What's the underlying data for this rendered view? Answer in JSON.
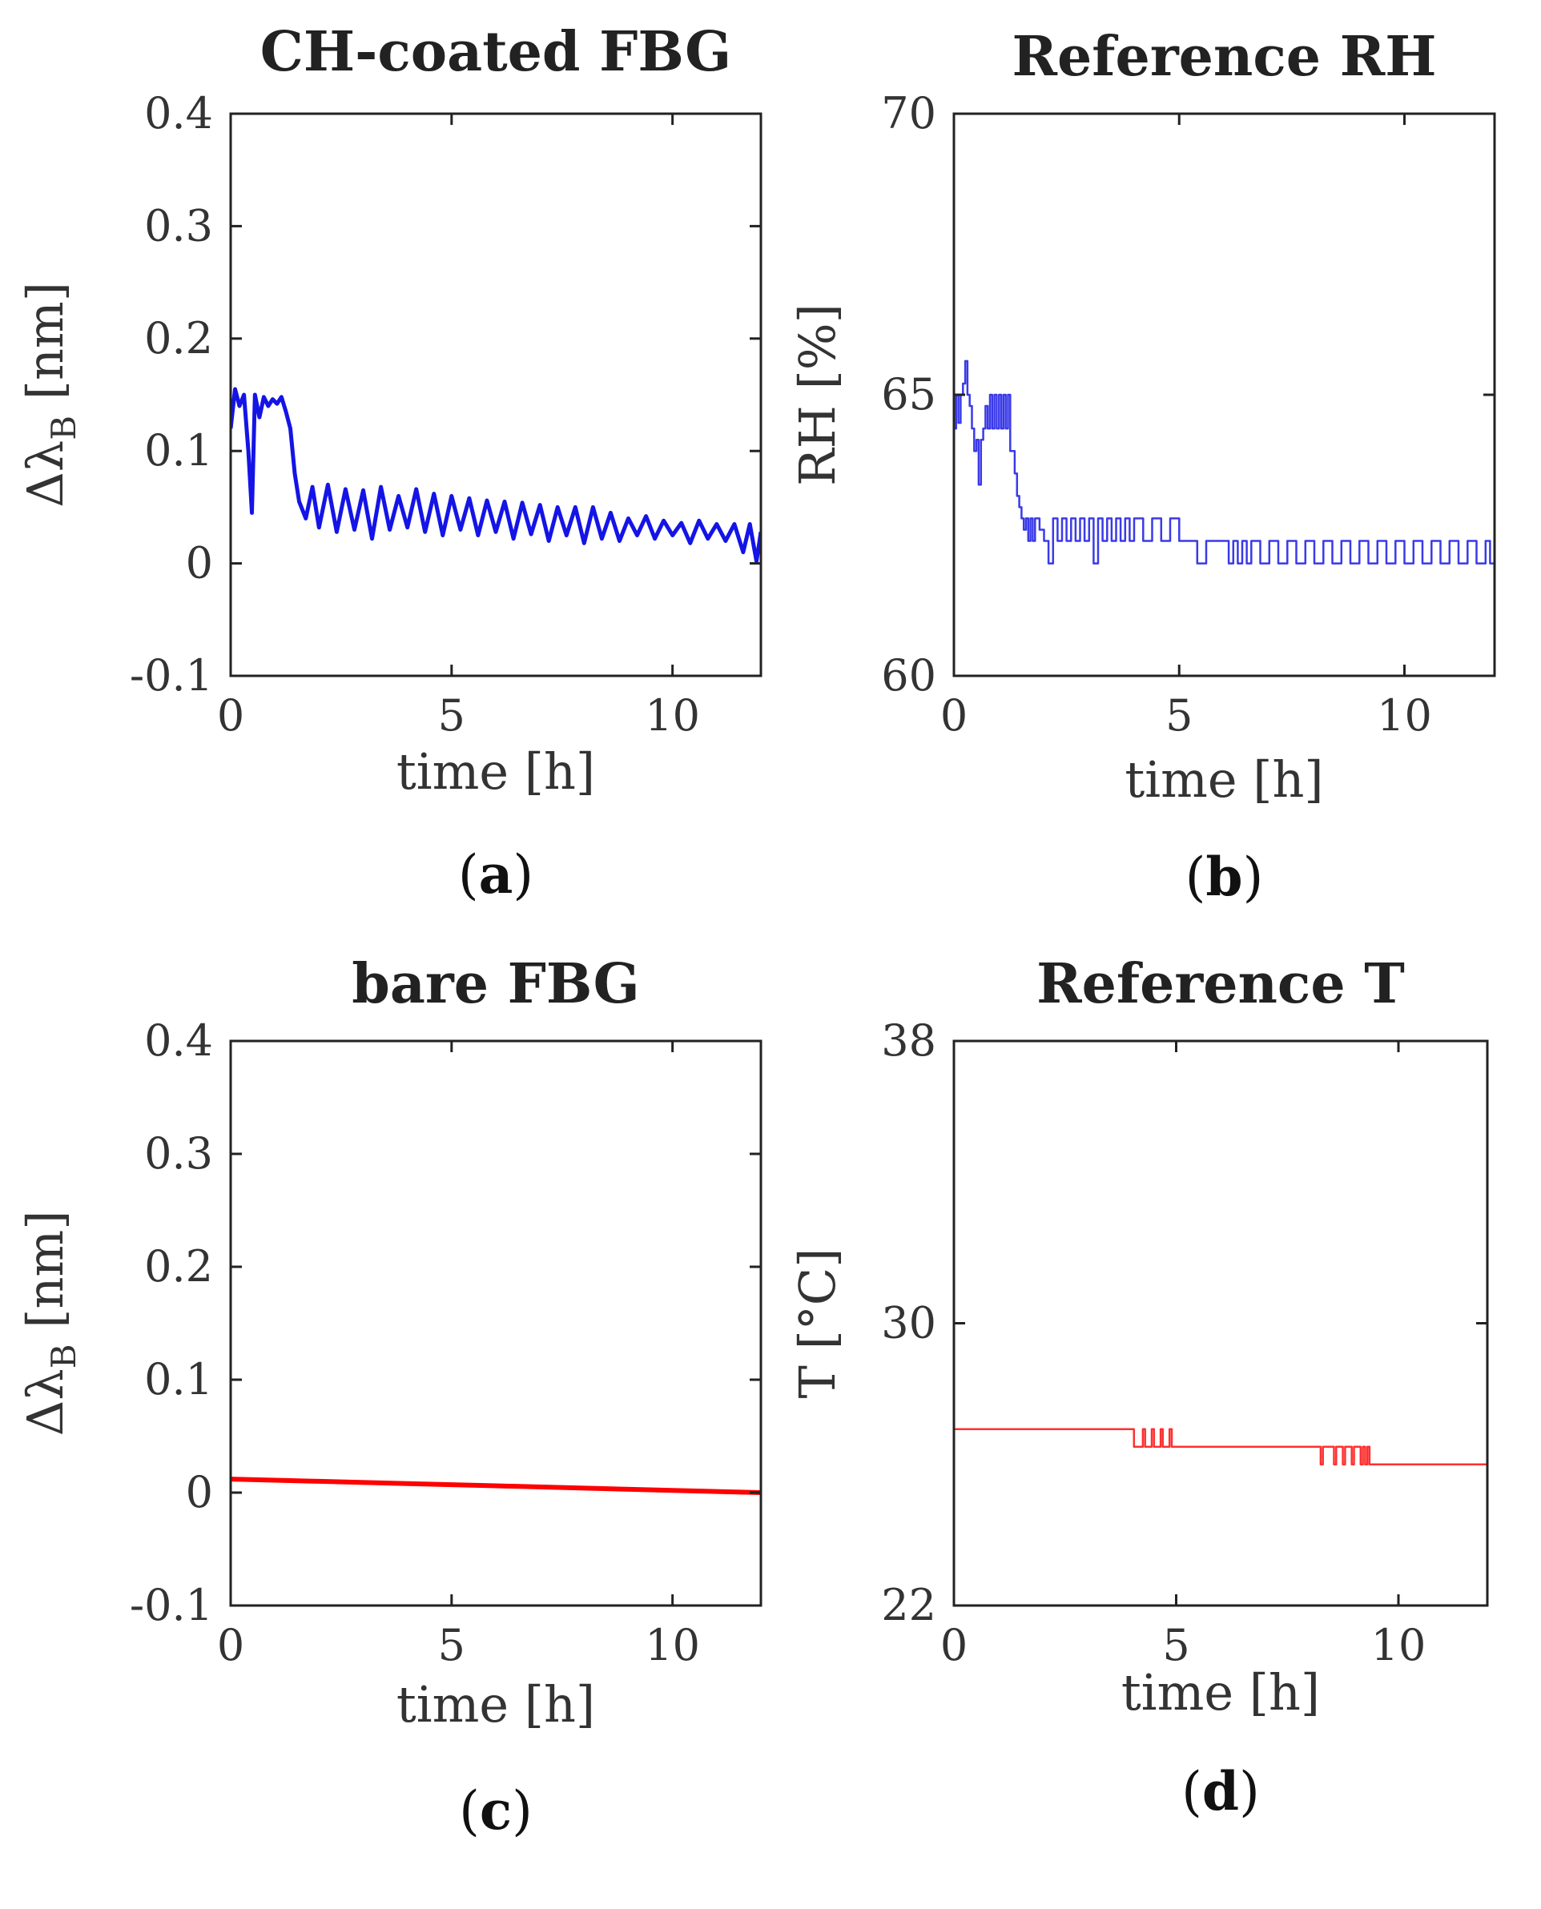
{
  "chart_data": [
    {
      "id": "a",
      "type": "line",
      "title": "CH-coated FBG",
      "ylabel": "Δλ",
      "ylabel_sub": "B",
      "ylabel_unit": " [nm]",
      "xlabel": "time [h]",
      "xlim": [
        0,
        12
      ],
      "ylim": [
        -0.1,
        0.4
      ],
      "xticks": [
        0,
        5,
        10
      ],
      "xtick_labels": [
        "0",
        "5",
        "10"
      ],
      "yticks": [
        -0.1,
        0,
        0.1,
        0.2,
        0.3,
        0.4
      ],
      "ytick_labels": [
        "-0.1",
        "0",
        "0.1",
        "0.2",
        "0.3",
        "0.4"
      ],
      "panel_label": "a",
      "series": [
        {
          "name": "CH-coated FBG",
          "color": "#1414e6",
          "x": [
            0,
            0.1,
            0.2,
            0.3,
            0.4,
            0.48,
            0.55,
            0.65,
            0.75,
            0.85,
            0.95,
            1.05,
            1.15,
            1.25,
            1.35,
            1.45,
            1.55,
            1.7,
            1.85,
            2.0,
            2.2,
            2.4,
            2.6,
            2.8,
            3.0,
            3.2,
            3.4,
            3.6,
            3.8,
            4.0,
            4.2,
            4.4,
            4.6,
            4.8,
            5.0,
            5.2,
            5.4,
            5.6,
            5.8,
            6.0,
            6.2,
            6.4,
            6.6,
            6.8,
            7.0,
            7.2,
            7.4,
            7.6,
            7.8,
            8.0,
            8.2,
            8.4,
            8.6,
            8.8,
            9.0,
            9.2,
            9.4,
            9.6,
            9.8,
            10.0,
            10.2,
            10.4,
            10.6,
            10.8,
            11.0,
            11.2,
            11.4,
            11.6,
            11.75,
            11.9,
            12.0
          ],
          "values": [
            0.12,
            0.155,
            0.14,
            0.15,
            0.1,
            0.045,
            0.15,
            0.13,
            0.148,
            0.14,
            0.146,
            0.142,
            0.148,
            0.135,
            0.12,
            0.08,
            0.055,
            0.04,
            0.068,
            0.032,
            0.07,
            0.028,
            0.066,
            0.03,
            0.065,
            0.022,
            0.068,
            0.03,
            0.06,
            0.032,
            0.066,
            0.028,
            0.062,
            0.025,
            0.06,
            0.03,
            0.058,
            0.025,
            0.056,
            0.028,
            0.055,
            0.022,
            0.054,
            0.026,
            0.052,
            0.02,
            0.05,
            0.025,
            0.05,
            0.018,
            0.05,
            0.022,
            0.045,
            0.02,
            0.04,
            0.025,
            0.042,
            0.022,
            0.038,
            0.025,
            0.036,
            0.018,
            0.038,
            0.022,
            0.035,
            0.02,
            0.035,
            0.01,
            0.035,
            0.002,
            0.028
          ]
        }
      ]
    },
    {
      "id": "b",
      "type": "line",
      "title": "Reference RH",
      "ylabel": "RH [%]",
      "xlabel": "time [h]",
      "xlim": [
        0,
        12
      ],
      "ylim": [
        60,
        70
      ],
      "xticks": [
        0,
        5,
        10
      ],
      "xtick_labels": [
        "0",
        "5",
        "10"
      ],
      "yticks": [
        60,
        65,
        70
      ],
      "ytick_labels": [
        "60",
        "65",
        "70"
      ],
      "panel_label": "b",
      "series": [
        {
          "name": "Reference RH",
          "color": "#3a3ae8",
          "x": [
            0,
            0.05,
            0.1,
            0.15,
            0.2,
            0.25,
            0.3,
            0.35,
            0.4,
            0.45,
            0.5,
            0.55,
            0.6,
            0.65,
            0.7,
            0.75,
            0.8,
            0.85,
            0.9,
            0.95,
            1.0,
            1.05,
            1.1,
            1.15,
            1.2,
            1.25,
            1.3,
            1.35,
            1.4,
            1.45,
            1.5,
            1.55,
            1.6,
            1.65,
            1.7,
            1.75,
            1.8,
            1.9,
            2.0,
            2.1,
            2.2,
            2.3,
            2.4,
            2.5,
            2.6,
            2.7,
            2.8,
            2.9,
            3.0,
            3.1,
            3.2,
            3.3,
            3.4,
            3.5,
            3.6,
            3.7,
            3.8,
            3.9,
            4.0,
            4.2,
            4.4,
            4.6,
            4.8,
            5.0,
            5.2,
            5.4,
            5.6,
            5.8,
            6.0,
            6.1,
            6.2,
            6.3,
            6.4,
            6.5,
            6.6,
            6.7,
            6.8,
            7.0,
            7.2,
            7.4,
            7.6,
            7.8,
            8.0,
            8.2,
            8.4,
            8.6,
            8.8,
            9.0,
            9.2,
            9.4,
            9.6,
            9.8,
            10.0,
            10.2,
            10.4,
            10.6,
            10.8,
            11.0,
            11.2,
            11.4,
            11.6,
            11.8,
            11.9,
            12.0
          ],
          "values": [
            64.4,
            65.0,
            64.5,
            65.0,
            65.2,
            65.6,
            65.0,
            64.8,
            64.4,
            64.0,
            64.2,
            63.4,
            64.2,
            64.4,
            64.8,
            64.4,
            65.0,
            64.4,
            65.0,
            64.4,
            65.0,
            64.4,
            65.0,
            64.4,
            65.0,
            64.0,
            64.0,
            63.6,
            63.2,
            63.0,
            62.8,
            62.6,
            62.8,
            62.4,
            62.8,
            62.4,
            62.8,
            62.6,
            62.4,
            62.0,
            62.8,
            62.4,
            62.8,
            62.4,
            62.8,
            62.4,
            62.8,
            62.4,
            62.8,
            62.0,
            62.8,
            62.4,
            62.8,
            62.4,
            62.8,
            62.4,
            62.8,
            62.4,
            62.8,
            62.4,
            62.8,
            62.4,
            62.8,
            62.4,
            62.4,
            62.0,
            62.4,
            62.4,
            62.4,
            62.0,
            62.4,
            62.0,
            62.4,
            62.0,
            62.4,
            62.4,
            62.0,
            62.4,
            62.0,
            62.4,
            62.0,
            62.4,
            62.0,
            62.4,
            62.0,
            62.4,
            62.0,
            62.4,
            62.0,
            62.4,
            62.0,
            62.4,
            62.0,
            62.4,
            62.0,
            62.4,
            62.0,
            62.4,
            62.0,
            62.4,
            62.0,
            62.4,
            62.0,
            62.0
          ]
        }
      ]
    },
    {
      "id": "c",
      "type": "line",
      "title": "bare FBG",
      "ylabel": "Δλ",
      "ylabel_sub": "B",
      "ylabel_unit": " [nm]",
      "xlabel": "time [h]",
      "xlim": [
        0,
        12
      ],
      "ylim": [
        -0.1,
        0.4
      ],
      "xticks": [
        0,
        5,
        10
      ],
      "xtick_labels": [
        "0",
        "5",
        "10"
      ],
      "yticks": [
        -0.1,
        0,
        0.1,
        0.2,
        0.3,
        0.4
      ],
      "ytick_labels": [
        "-0.1",
        "0",
        "0.1",
        "0.2",
        "0.3",
        "0.4"
      ],
      "panel_label": "c",
      "series": [
        {
          "name": "bare FBG",
          "color": "#ff0000",
          "x": [
            0,
            2,
            4,
            6,
            8,
            10,
            12
          ],
          "values": [
            0.012,
            0.01,
            0.008,
            0.006,
            0.004,
            0.002,
            0.0
          ]
        }
      ]
    },
    {
      "id": "d",
      "type": "line",
      "title": "Reference T",
      "ylabel": "T [°C]",
      "xlabel": "time [h]",
      "xlim": [
        0,
        12
      ],
      "ylim": [
        22,
        38
      ],
      "xticks": [
        0,
        5,
        10
      ],
      "xtick_labels": [
        "0",
        "5",
        "10"
      ],
      "yticks": [
        22,
        30,
        38
      ],
      "ytick_labels": [
        "22",
        "30",
        "38"
      ],
      "panel_label": "d",
      "series": [
        {
          "name": "Reference T",
          "color": "#ff3030",
          "x": [
            0,
            4.0,
            4.05,
            4.2,
            4.25,
            4.3,
            4.4,
            4.45,
            4.5,
            4.6,
            4.65,
            4.7,
            4.8,
            4.85,
            4.9,
            5.0,
            5.05,
            8.2,
            8.25,
            8.3,
            8.5,
            8.55,
            8.6,
            8.7,
            8.75,
            8.8,
            8.9,
            8.95,
            9.0,
            9.1,
            9.15,
            9.2,
            9.25,
            9.3,
            9.35,
            12.0
          ],
          "values": [
            27.0,
            27.0,
            26.5,
            26.5,
            27.0,
            26.5,
            26.5,
            27.0,
            26.5,
            26.5,
            27.0,
            26.5,
            26.5,
            27.0,
            26.5,
            26.5,
            26.5,
            26.5,
            26.0,
            26.5,
            26.5,
            26.0,
            26.5,
            26.5,
            26.0,
            26.5,
            26.5,
            26.0,
            26.5,
            26.5,
            26.0,
            26.5,
            26.0,
            26.5,
            26.0,
            26.0
          ]
        }
      ]
    }
  ]
}
